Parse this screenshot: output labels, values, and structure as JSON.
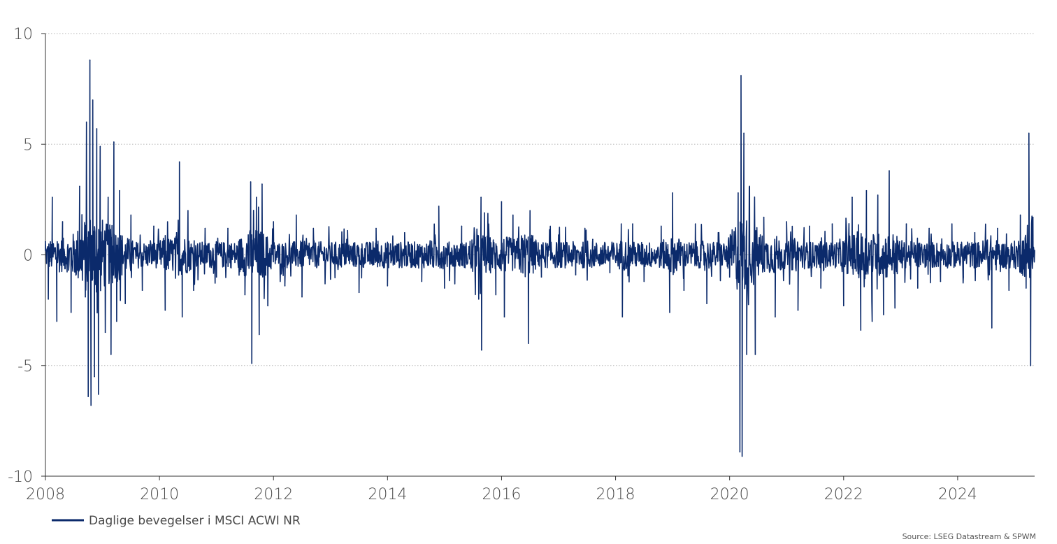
{
  "chart_data": {
    "type": "line",
    "title": "",
    "xlabel": "",
    "ylabel": "",
    "xlim": [
      2008.0,
      2025.35
    ],
    "ylim": [
      -10,
      10
    ],
    "x_ticks": [
      "2008",
      "2010",
      "2012",
      "2014",
      "2016",
      "2018",
      "2020",
      "2022",
      "2024"
    ],
    "y_ticks": [
      "10",
      "5",
      "0",
      "-5",
      "-10"
    ],
    "grid": "horizontal dotted",
    "legend_position": "bottom-left",
    "series": [
      {
        "name": "Daglige bevegelser i MSCI ACWI NR",
        "color": "#0b2a6b",
        "description_points": [
          [
            2008.0,
            0.6
          ],
          [
            2008.05,
            -2.0
          ],
          [
            2008.12,
            2.6
          ],
          [
            2008.2,
            -3.0
          ],
          [
            2008.3,
            1.5
          ],
          [
            2008.45,
            -2.6
          ],
          [
            2008.6,
            3.1
          ],
          [
            2008.7,
            -1.9
          ],
          [
            2008.72,
            6.0
          ],
          [
            2008.75,
            -6.4
          ],
          [
            2008.78,
            8.8
          ],
          [
            2008.8,
            -6.8
          ],
          [
            2008.83,
            7.0
          ],
          [
            2008.86,
            -5.5
          ],
          [
            2008.9,
            5.7
          ],
          [
            2008.93,
            -6.3
          ],
          [
            2008.96,
            4.9
          ],
          [
            2009.05,
            -3.5
          ],
          [
            2009.1,
            2.6
          ],
          [
            2009.15,
            -4.5
          ],
          [
            2009.2,
            5.1
          ],
          [
            2009.25,
            -3.0
          ],
          [
            2009.3,
            2.9
          ],
          [
            2009.4,
            -2.2
          ],
          [
            2009.5,
            1.8
          ],
          [
            2009.7,
            -1.6
          ],
          [
            2009.9,
            1.3
          ],
          [
            2010.1,
            -2.5
          ],
          [
            2010.3,
            1.0
          ],
          [
            2010.35,
            4.2
          ],
          [
            2010.4,
            -2.8
          ],
          [
            2010.5,
            2.0
          ],
          [
            2010.6,
            -1.6
          ],
          [
            2010.8,
            1.2
          ],
          [
            2011.0,
            -1.0
          ],
          [
            2011.2,
            1.2
          ],
          [
            2011.5,
            -1.8
          ],
          [
            2011.6,
            3.3
          ],
          [
            2011.62,
            -4.9
          ],
          [
            2011.7,
            2.6
          ],
          [
            2011.75,
            -3.6
          ],
          [
            2011.8,
            3.2
          ],
          [
            2011.9,
            -2.3
          ],
          [
            2012.0,
            1.5
          ],
          [
            2012.2,
            -1.4
          ],
          [
            2012.4,
            1.8
          ],
          [
            2012.5,
            -1.9
          ],
          [
            2012.7,
            1.2
          ],
          [
            2013.0,
            -1.1
          ],
          [
            2013.3,
            1.1
          ],
          [
            2013.5,
            -1.7
          ],
          [
            2013.8,
            1.2
          ],
          [
            2014.0,
            -1.4
          ],
          [
            2014.3,
            1.0
          ],
          [
            2014.6,
            -1.2
          ],
          [
            2014.9,
            2.2
          ],
          [
            2015.0,
            -1.5
          ],
          [
            2015.3,
            1.3
          ],
          [
            2015.6,
            -2.0
          ],
          [
            2015.64,
            2.6
          ],
          [
            2015.65,
            -4.3
          ],
          [
            2015.7,
            1.9
          ],
          [
            2015.9,
            -1.8
          ],
          [
            2016.0,
            2.4
          ],
          [
            2016.05,
            -2.8
          ],
          [
            2016.2,
            1.8
          ],
          [
            2016.47,
            -4.0
          ],
          [
            2016.5,
            2.0
          ],
          [
            2016.7,
            -1.0
          ],
          [
            2017.0,
            0.9
          ],
          [
            2017.3,
            -0.9
          ],
          [
            2017.6,
            0.7
          ],
          [
            2017.9,
            -0.8
          ],
          [
            2018.1,
            1.4
          ],
          [
            2018.12,
            -2.8
          ],
          [
            2018.3,
            1.4
          ],
          [
            2018.5,
            -1.2
          ],
          [
            2018.8,
            1.3
          ],
          [
            2018.95,
            -2.6
          ],
          [
            2019.0,
            2.8
          ],
          [
            2019.2,
            -1.6
          ],
          [
            2019.4,
            1.4
          ],
          [
            2019.6,
            -2.2
          ],
          [
            2019.8,
            1.0
          ],
          [
            2020.0,
            -1.0
          ],
          [
            2020.15,
            2.8
          ],
          [
            2020.18,
            -8.9
          ],
          [
            2020.2,
            8.1
          ],
          [
            2020.22,
            -9.1
          ],
          [
            2020.25,
            5.5
          ],
          [
            2020.3,
            -4.5
          ],
          [
            2020.35,
            3.1
          ],
          [
            2020.45,
            -4.5
          ],
          [
            2020.6,
            1.7
          ],
          [
            2020.8,
            -2.8
          ],
          [
            2021.0,
            1.5
          ],
          [
            2021.2,
            -2.5
          ],
          [
            2021.4,
            1.3
          ],
          [
            2021.6,
            -1.5
          ],
          [
            2021.8,
            1.4
          ],
          [
            2022.0,
            -2.3
          ],
          [
            2022.15,
            2.6
          ],
          [
            2022.3,
            -3.4
          ],
          [
            2022.4,
            2.9
          ],
          [
            2022.5,
            -3.0
          ],
          [
            2022.6,
            2.7
          ],
          [
            2022.7,
            -2.7
          ],
          [
            2022.8,
            3.8
          ],
          [
            2022.9,
            -2.4
          ],
          [
            2023.1,
            1.4
          ],
          [
            2023.3,
            -1.5
          ],
          [
            2023.5,
            1.2
          ],
          [
            2023.7,
            -1.2
          ],
          [
            2023.9,
            1.4
          ],
          [
            2024.1,
            -1.0
          ],
          [
            2024.3,
            1.0
          ],
          [
            2024.6,
            -3.3
          ],
          [
            2024.7,
            1.2
          ],
          [
            2024.9,
            -1.6
          ],
          [
            2025.1,
            1.8
          ],
          [
            2025.2,
            -1.5
          ],
          [
            2025.25,
            5.5
          ],
          [
            2025.28,
            -5.0
          ],
          [
            2025.32,
            1.7
          ],
          [
            2025.35,
            0.2
          ]
        ]
      }
    ],
    "source": "Source: LSEG Datastream & SPWM"
  }
}
